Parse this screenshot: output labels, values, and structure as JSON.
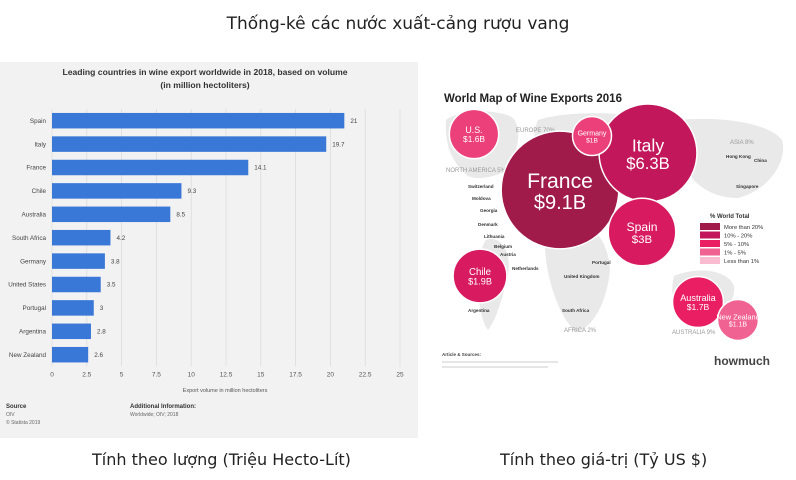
{
  "page": {
    "title": "Thống-kê các nước xuất-cảng rượu vang",
    "caption_left": "Tính theo lượng (Triệu Hecto-Lít)",
    "caption_right": "Tính theo giá-trị (Tỷ US $)"
  },
  "chart_data": [
    {
      "type": "bar",
      "orientation": "horizontal",
      "title": "Leading countries in wine export worldwide in 2018, based on volume (in million hectoliters)",
      "xlabel": "Export volume in million hectoliters",
      "ylabel": "",
      "categories": [
        "Spain",
        "Italy",
        "France",
        "Chile",
        "Australia",
        "South Africa",
        "Germany",
        "United States",
        "Portugal",
        "Argentina",
        "New Zealand"
      ],
      "values": [
        21,
        19.7,
        14.1,
        9.3,
        8.5,
        4.2,
        3.8,
        3.5,
        3,
        2.8,
        2.6
      ],
      "value_labels": [
        "21",
        "19.7",
        "14.1",
        "9.3",
        "8.5",
        "4.2",
        "3.8",
        "3.5",
        "3",
        "2.8",
        "2.6"
      ],
      "xlim": [
        0,
        25
      ],
      "xticks": [
        "0",
        "2.5",
        "5",
        "7.5",
        "10",
        "12.5",
        "15",
        "17.5",
        "20",
        "22.5",
        "25"
      ],
      "grid": true,
      "bar_color": "#3a78d8",
      "source_label": "Source",
      "source_lines": [
        "OIV",
        "© Statista 2019"
      ],
      "info_label": "Additional Information:",
      "info_text": "Worldwide; OIV; 2018"
    },
    {
      "type": "bubble-map",
      "title": "World Map of Wine Exports 2016",
      "brand": "howmuch",
      "bubbles": [
        {
          "country": "France",
          "value": "$9.1B",
          "value_billion": 9.1,
          "color": "#a01a4a"
        },
        {
          "country": "Italy",
          "value": "$6.3B",
          "value_billion": 6.3,
          "color": "#c2185b"
        },
        {
          "country": "Spain",
          "value": "$3B",
          "value_billion": 3.0,
          "color": "#d81b60"
        },
        {
          "country": "Chile",
          "value": "$1.9B",
          "value_billion": 1.9,
          "color": "#d81b60"
        },
        {
          "country": "Australia",
          "value": "$1.7B",
          "value_billion": 1.7,
          "color": "#e91e63"
        },
        {
          "country": "U.S.",
          "value": "$1.6B",
          "value_billion": 1.6,
          "color": "#ec407a"
        },
        {
          "country": "Germany",
          "value": "$1B",
          "value_billion": 1.0,
          "color": "#ec407a"
        },
        {
          "country": "New Zealand",
          "value": "$1.1B",
          "value_billion": 1.1,
          "color": "#f06292"
        }
      ],
      "region_labels": [
        "EUROPE 70%",
        "NORTH AMERICA 5%",
        "ASIA 8%",
        "AFRICA 2%",
        "AUSTRALIA 9%"
      ],
      "small_labels": [
        "Switzerland",
        "Moldova",
        "Georgia",
        "Denmark",
        "Lithuania",
        "Belgium",
        "Austria",
        "Netherlands",
        "Portugal",
        "United Kingdom",
        "South Africa",
        "Argentina",
        "Hong Kong",
        "China",
        "Singapore"
      ],
      "legend_title": "% World Total",
      "legend": [
        {
          "label": "More than 20%",
          "color": "#a01a4a"
        },
        {
          "label": "10% - 20%",
          "color": "#c2185b"
        },
        {
          "label": "5% - 10%",
          "color": "#e91e63"
        },
        {
          "label": "1% - 5%",
          "color": "#f06292"
        },
        {
          "label": "Less than 1%",
          "color": "#f8bbd0"
        }
      ],
      "sources_label": "Article & Sources:"
    }
  ]
}
